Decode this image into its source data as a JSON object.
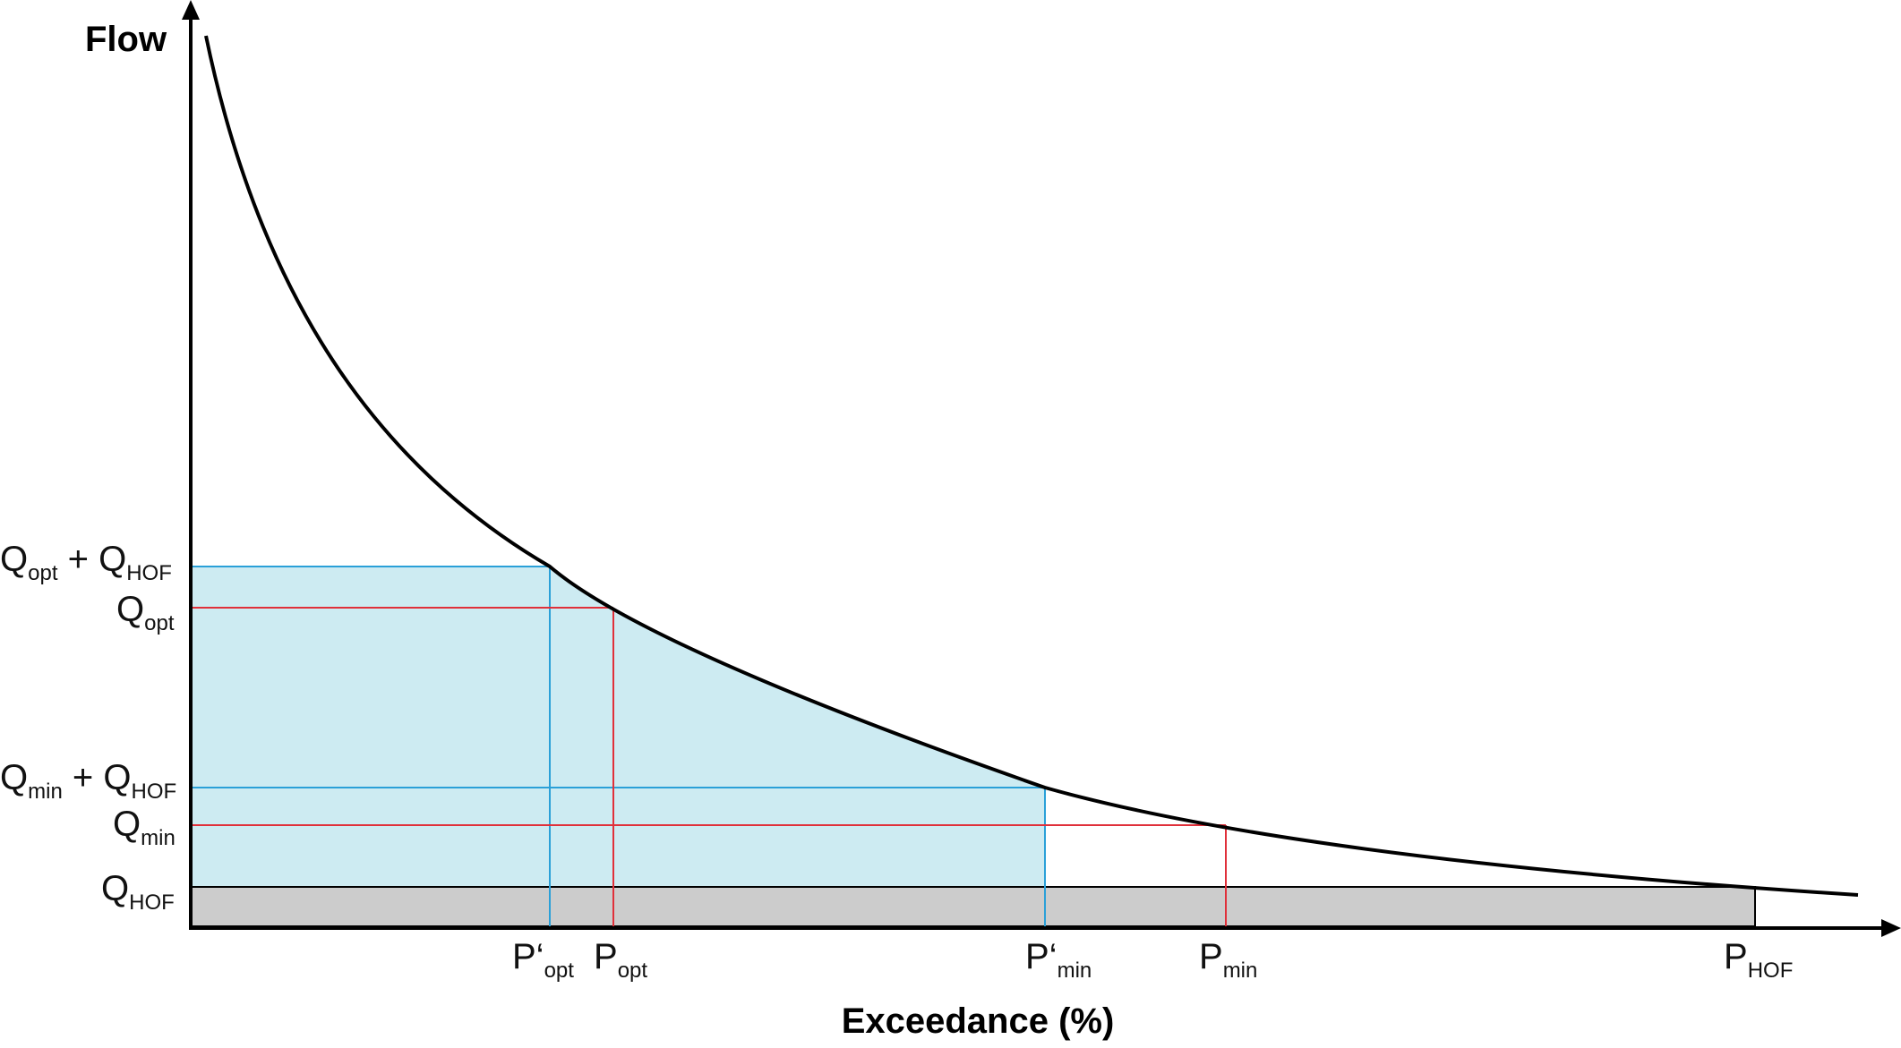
{
  "axes": {
    "y_title": "Flow",
    "x_title": "Exceedance (%)"
  },
  "y_labels": {
    "q_opt_hof": {
      "main": "Q",
      "sub": "opt",
      "plus": " + Q",
      "sub2": "HOF"
    },
    "q_opt": {
      "main": "Q",
      "sub": "opt"
    },
    "q_min_hof": {
      "main": "Q",
      "sub": "min",
      "plus": " + Q",
      "sub2": "HOF"
    },
    "q_min": {
      "main": "Q",
      "sub": "min"
    },
    "q_hof": {
      "main": "Q",
      "sub": "HOF"
    }
  },
  "x_labels": {
    "p_prime_opt": {
      "main": "P‘",
      "sub": "opt"
    },
    "p_opt": {
      "main": "P",
      "sub": "opt"
    },
    "p_prime_min": {
      "main": "P‘",
      "sub": "min"
    },
    "p_min": {
      "main": "P",
      "sub": "min"
    },
    "p_hof": {
      "main": "P",
      "sub": "HOF"
    }
  },
  "colors": {
    "curve": "#000000",
    "axis": "#000000",
    "blue_line": "#2aa0d8",
    "red_line": "#e0303a",
    "blue_fill": "#cdebf2",
    "gray_fill": "#cccccc"
  }
}
